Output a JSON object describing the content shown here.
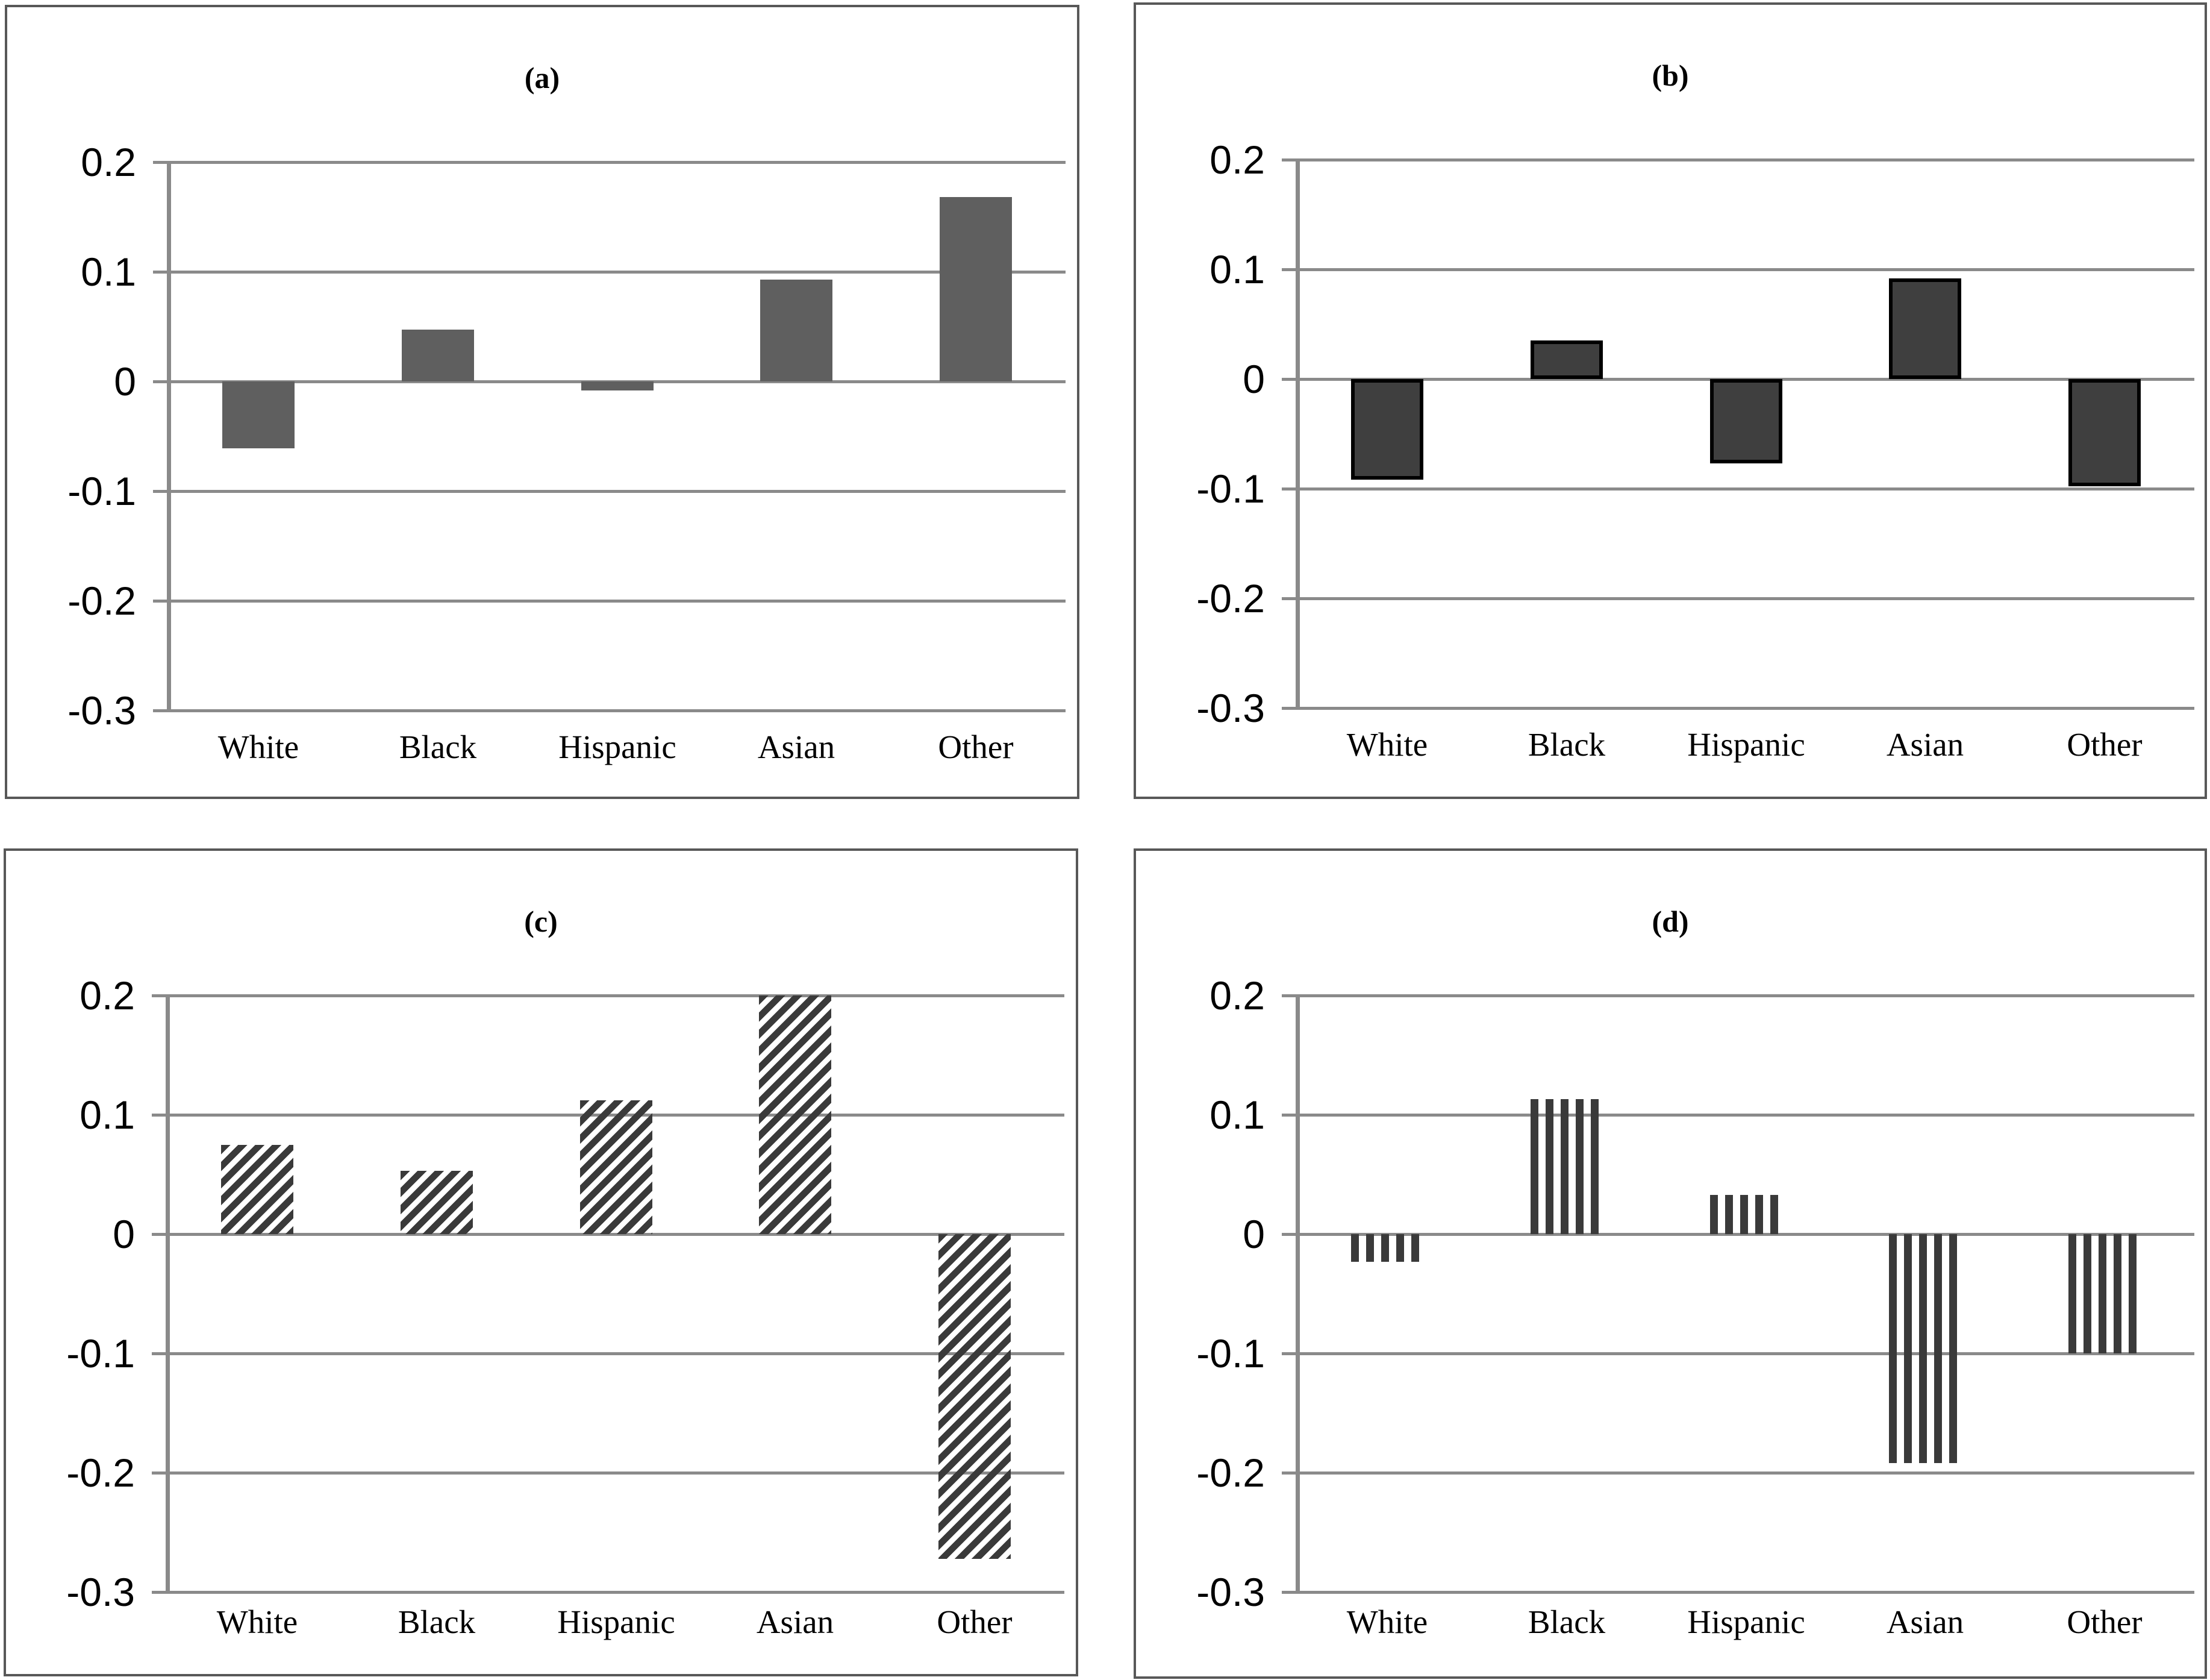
{
  "figure": {
    "description": "Four-panel bar chart figure comparing values by race/ethnicity",
    "panels": [
      {
        "id": "a",
        "title": "(a)",
        "bar_style": "solid-gray"
      },
      {
        "id": "b",
        "title": "(b)",
        "bar_style": "dark-outlined"
      },
      {
        "id": "c",
        "title": "(c)",
        "bar_style": "diagonal-hatch"
      },
      {
        "id": "d",
        "title": "(d)",
        "bar_style": "vertical-stripes"
      }
    ]
  },
  "colors": {
    "bar_solid": "#5f5f5f",
    "bar_dark_fill": "#3f3f3f",
    "bar_outline": "#000000",
    "pattern_dark": "#3a3a3a",
    "gridline": "#8a8a8a",
    "panel_border": "#585858",
    "text": "#000000"
  },
  "chart_data": [
    {
      "type": "bar",
      "panel": "a",
      "title": "(a)",
      "categories": [
        "White",
        "Black",
        "Hispanic",
        "Asian",
        "Other"
      ],
      "values": [
        -0.061,
        0.047,
        -0.008,
        0.093,
        0.168
      ],
      "ylim": [
        -0.3,
        0.2
      ],
      "ytick_labels": [
        "0.2",
        "0.1",
        "0",
        "-0.1",
        "-0.2",
        "-0.3"
      ],
      "grid": true,
      "legend": "none",
      "bar_style": "solid-gray",
      "xlabel": "",
      "ylabel": ""
    },
    {
      "type": "bar",
      "panel": "b",
      "title": "(b)",
      "categories": [
        "White",
        "Black",
        "Hispanic",
        "Asian",
        "Other"
      ],
      "values": [
        -0.092,
        0.035,
        -0.077,
        0.092,
        -0.098
      ],
      "ylim": [
        -0.3,
        0.2
      ],
      "ytick_labels": [
        "0.2",
        "0.1",
        "0",
        "-0.1",
        "-0.2",
        "-0.3"
      ],
      "grid": true,
      "legend": "none",
      "bar_style": "dark-outlined",
      "xlabel": "",
      "ylabel": ""
    },
    {
      "type": "bar",
      "panel": "c",
      "title": "(c)",
      "categories": [
        "White",
        "Black",
        "Hispanic",
        "Asian",
        "Other"
      ],
      "values": [
        0.075,
        0.053,
        0.112,
        0.2,
        -0.272
      ],
      "ylim": [
        -0.3,
        0.2
      ],
      "ytick_labels": [
        "0.2",
        "0.1",
        "0",
        "-0.1",
        "-0.2",
        "-0.3"
      ],
      "grid": true,
      "legend": "none",
      "bar_style": "diagonal-hatch",
      "xlabel": "",
      "ylabel": ""
    },
    {
      "type": "bar",
      "panel": "d",
      "title": "(d)",
      "categories": [
        "White",
        "Black",
        "Hispanic",
        "Asian",
        "Other"
      ],
      "values": [
        -0.023,
        0.113,
        0.033,
        -0.192,
        -0.1
      ],
      "ylim": [
        -0.3,
        0.2
      ],
      "ytick_labels": [
        "0.2",
        "0.1",
        "0",
        "-0.1",
        "-0.2",
        "-0.3"
      ],
      "grid": true,
      "legend": "none",
      "bar_style": "vertical-stripes",
      "xlabel": "",
      "ylabel": ""
    }
  ]
}
